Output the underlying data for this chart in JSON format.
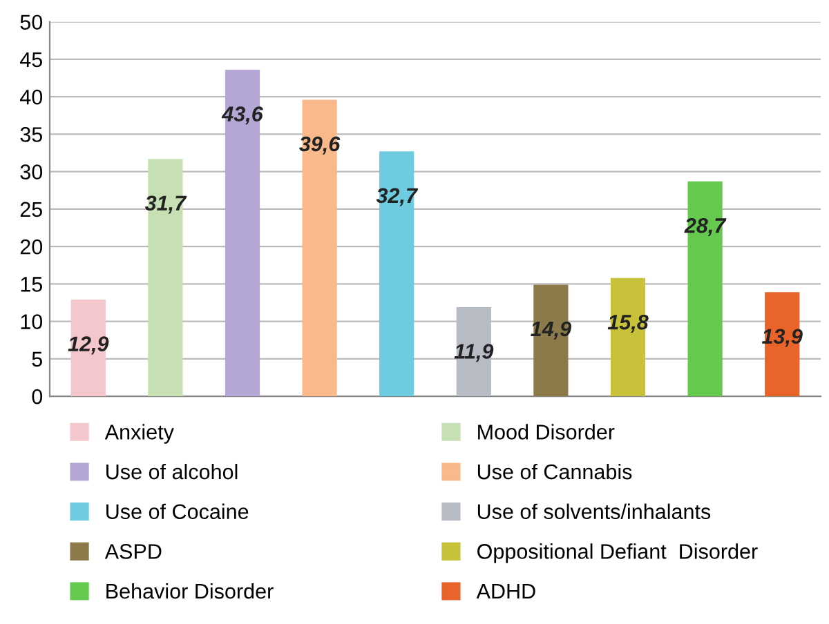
{
  "chart_data": {
    "type": "bar",
    "categories": [
      null,
      null,
      null,
      null,
      null,
      null,
      null,
      null,
      null,
      null
    ],
    "series": [
      {
        "name": "Anxiety",
        "color": "#f4c7cc",
        "values": [
          12.9,
          null,
          null,
          null,
          null,
          null,
          null,
          null,
          null,
          null
        ],
        "value_labels": [
          "12,9",
          null,
          null,
          null,
          null,
          null,
          null,
          null,
          null,
          null
        ]
      },
      {
        "name": "Mood Disorder",
        "color": "#c6e0b4",
        "values": [
          null,
          31.7,
          null,
          null,
          null,
          null,
          null,
          null,
          null,
          null
        ],
        "value_labels": [
          null,
          "31,7",
          null,
          null,
          null,
          null,
          null,
          null,
          null,
          null
        ]
      },
      {
        "name": "Use of alcohol",
        "color": "#b4a7d6",
        "values": [
          null,
          null,
          43.6,
          null,
          null,
          null,
          null,
          null,
          null,
          null
        ],
        "value_labels": [
          null,
          null,
          "43,6",
          null,
          null,
          null,
          null,
          null,
          null,
          null
        ]
      },
      {
        "name": "Use of Cannabis",
        "color": "#f9b98a",
        "values": [
          null,
          null,
          null,
          39.6,
          null,
          null,
          null,
          null,
          null,
          null
        ],
        "value_labels": [
          null,
          null,
          null,
          "39,6",
          null,
          null,
          null,
          null,
          null,
          null
        ]
      },
      {
        "name": "Use of Cocaine",
        "color": "#6fcbe0",
        "values": [
          null,
          null,
          null,
          null,
          32.7,
          null,
          null,
          null,
          null,
          null
        ],
        "value_labels": [
          null,
          null,
          null,
          null,
          "32,7",
          null,
          null,
          null,
          null,
          null
        ]
      },
      {
        "name": "Use of solvents/inhalants",
        "color": "#b7bcc4",
        "values": [
          null,
          null,
          null,
          null,
          null,
          11.9,
          null,
          null,
          null,
          null
        ],
        "value_labels": [
          null,
          null,
          null,
          null,
          null,
          "11,9",
          null,
          null,
          null,
          null
        ]
      },
      {
        "name": "ASPD",
        "color": "#8c7a4a",
        "values": [
          null,
          null,
          null,
          null,
          null,
          null,
          14.9,
          null,
          null,
          null
        ],
        "value_labels": [
          null,
          null,
          null,
          null,
          null,
          null,
          "14,9",
          null,
          null,
          null
        ]
      },
      {
        "name": "Oppositional Defiant  Disorder",
        "color": "#c8c23a",
        "values": [
          null,
          null,
          null,
          null,
          null,
          null,
          null,
          15.8,
          null,
          null
        ],
        "value_labels": [
          null,
          null,
          null,
          null,
          null,
          null,
          null,
          "15,8",
          null,
          null
        ]
      },
      {
        "name": "Behavior Disorder",
        "color": "#66c94f",
        "values": [
          null,
          null,
          null,
          null,
          null,
          null,
          null,
          null,
          28.7,
          null
        ],
        "value_labels": [
          null,
          null,
          null,
          null,
          null,
          null,
          null,
          null,
          "28,7",
          null
        ]
      },
      {
        "name": "ADHD",
        "color": "#e8642a",
        "values": [
          null,
          null,
          null,
          null,
          null,
          null,
          null,
          null,
          null,
          13.9
        ],
        "value_labels": [
          null,
          null,
          null,
          null,
          null,
          null,
          null,
          null,
          null,
          "13,9"
        ]
      }
    ],
    "ylim": [
      0,
      50
    ],
    "yticks": [
      0,
      5,
      10,
      15,
      20,
      25,
      30,
      35,
      40,
      45,
      50
    ],
    "grid": "y",
    "legend": "bottom"
  }
}
